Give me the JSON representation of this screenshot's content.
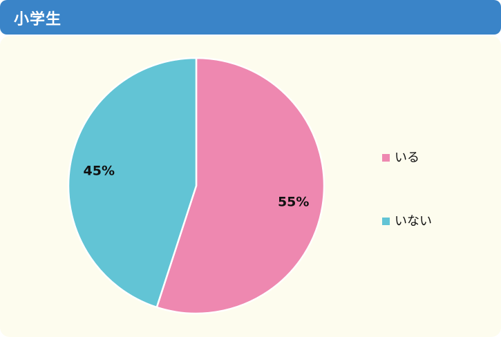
{
  "header": {
    "title": "小学生"
  },
  "colors": {
    "header_bg": "#3a84c8",
    "panel_bg": "#fdfcee",
    "slice_1": "#ee88b0",
    "slice_2": "#62c4d5"
  },
  "chart_data": {
    "type": "pie",
    "slices": [
      {
        "label": "いる",
        "value": 55,
        "display": "55%",
        "color": "#ee88b0"
      },
      {
        "label": "いない",
        "value": 45,
        "display": "45%",
        "color": "#62c4d5"
      }
    ],
    "legend_position": "right"
  }
}
